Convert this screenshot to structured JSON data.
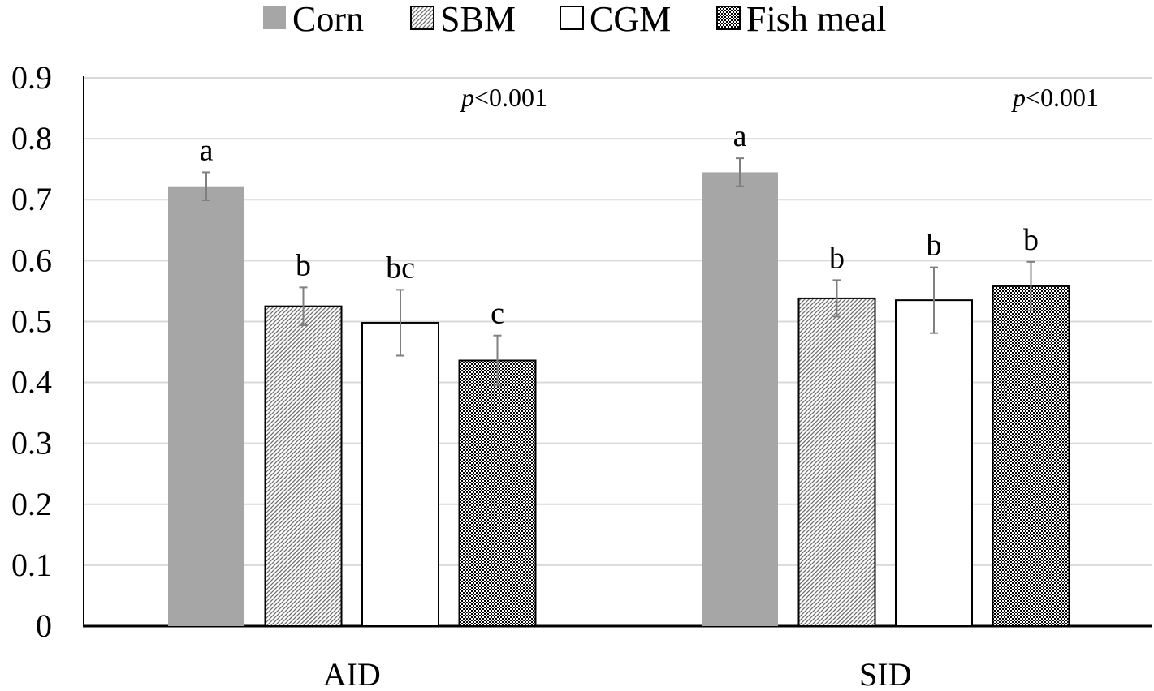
{
  "chart_data": {
    "type": "bar",
    "categories": [
      "AID",
      "SID"
    ],
    "series": [
      {
        "name": "Corn",
        "values": [
          0.722,
          0.745
        ],
        "errors": [
          0.023,
          0.023
        ],
        "letters": [
          "a",
          "a"
        ],
        "pattern": "solid-gray"
      },
      {
        "name": "SBM",
        "values": [
          0.525,
          0.538
        ],
        "errors": [
          0.031,
          0.03
        ],
        "letters": [
          "b",
          "b"
        ],
        "pattern": "diagonal-hatch"
      },
      {
        "name": "CGM",
        "values": [
          0.498,
          0.535
        ],
        "errors": [
          0.054,
          0.054
        ],
        "letters": [
          "bc",
          "b"
        ],
        "pattern": "white"
      },
      {
        "name": "Fish meal",
        "values": [
          0.436,
          0.558
        ],
        "errors": [
          0.041,
          0.04
        ],
        "letters": [
          "c",
          "b"
        ],
        "pattern": "checker"
      }
    ],
    "annotations": [
      {
        "category": "AID",
        "italic": "p",
        "text": "<0.001"
      },
      {
        "category": "SID",
        "italic": "p",
        "text": "<0.001"
      }
    ],
    "ylim": [
      0,
      0.9
    ],
    "yticks": [
      "0",
      "0.1",
      "0.2",
      "0.3",
      "0.4",
      "0.5",
      "0.6",
      "0.7",
      "0.8",
      "0.9"
    ],
    "grid": true,
    "legend": "top-center",
    "colors": {
      "corn": "#a6a6a6",
      "bar_stroke": "#000000",
      "grid": "#d9d9d9",
      "error_bar": "#7f7f7f",
      "axis": "#000000"
    }
  }
}
